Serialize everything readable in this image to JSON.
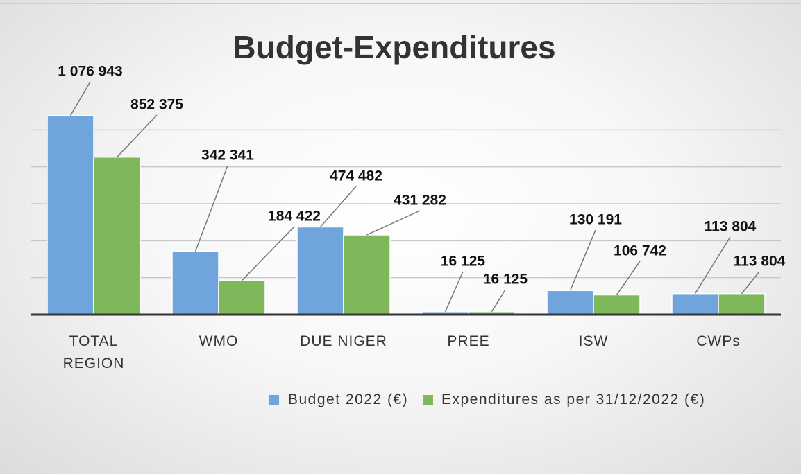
{
  "chart_data": {
    "type": "bar",
    "title": "Budget-Expenditures",
    "categories": [
      "TOTAL REGION",
      "WMO",
      "DUE NIGER",
      "PREE",
      "ISW",
      "CWPs"
    ],
    "series": [
      {
        "name": "Budget 2022 (€)",
        "color": "#6fa5dc",
        "values": [
          1076943,
          342341,
          474482,
          16125,
          130191,
          113804
        ],
        "value_labels": [
          "1 076 943",
          "342 341",
          "474 482",
          "16 125",
          "130 191",
          "113 804"
        ]
      },
      {
        "name": "Expenditures as per 31/12/2022 (€)",
        "color": "#7fb85a",
        "values": [
          852375,
          184422,
          431282,
          16125,
          106742,
          113804
        ],
        "value_labels": [
          "852 375",
          "184 422",
          "431 282",
          "16 125",
          "106 742",
          "113 804"
        ]
      }
    ],
    "ylim": [
      0,
      1200000
    ],
    "yticks": [
      0,
      200000,
      400000,
      600000,
      800000,
      1000000
    ],
    "grid": true,
    "legend": "bottom"
  }
}
